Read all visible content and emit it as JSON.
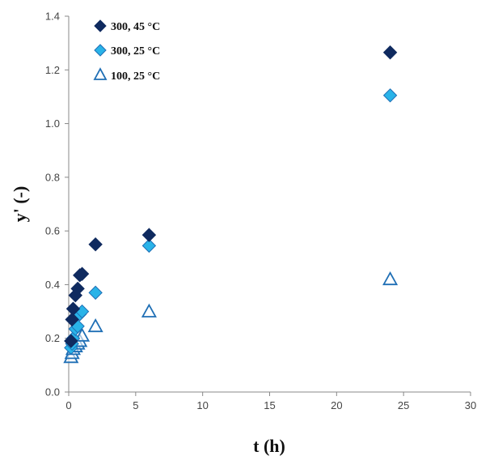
{
  "chart_data": {
    "type": "scatter",
    "xlabel": "t (h)",
    "ylabel": "y' (-)",
    "xlim": [
      0,
      30
    ],
    "ylim": [
      0,
      1.4
    ],
    "x_ticks": [
      "0",
      "5",
      "10",
      "15",
      "20",
      "25",
      "30"
    ],
    "y_ticks": [
      "0.0",
      "0.2",
      "0.4",
      "0.6",
      "0.8",
      "1.0",
      "1.2",
      "1.4"
    ],
    "grid": false,
    "legend_position": "top-left",
    "series": [
      {
        "name": "300, 45 °C",
        "marker": "diamond-filled",
        "color": "#0f2a5f",
        "x": [
          0.17,
          0.25,
          0.33,
          0.5,
          0.67,
          0.83,
          1.0,
          2.0,
          6.0,
          24.0
        ],
        "y": [
          0.19,
          0.27,
          0.31,
          0.36,
          0.385,
          0.435,
          0.44,
          0.55,
          0.585,
          1.265
        ]
      },
      {
        "name": "300, 25 °C",
        "marker": "diamond-filled",
        "color": "#29b3e8",
        "x": [
          0.17,
          0.25,
          0.33,
          0.5,
          0.67,
          0.83,
          1.0,
          2.0,
          6.0,
          24.0
        ],
        "y": [
          0.165,
          0.18,
          0.2,
          0.235,
          0.245,
          0.29,
          0.3,
          0.37,
          0.545,
          1.105
        ]
      },
      {
        "name": "100, 25 °C",
        "marker": "triangle-open",
        "color": "#1f6fb5",
        "x": [
          0.17,
          0.25,
          0.33,
          0.5,
          0.67,
          0.83,
          1.0,
          2.0,
          6.0,
          24.0
        ],
        "y": [
          0.13,
          0.145,
          0.16,
          0.17,
          0.18,
          0.19,
          0.21,
          0.245,
          0.3,
          0.42
        ]
      }
    ]
  }
}
